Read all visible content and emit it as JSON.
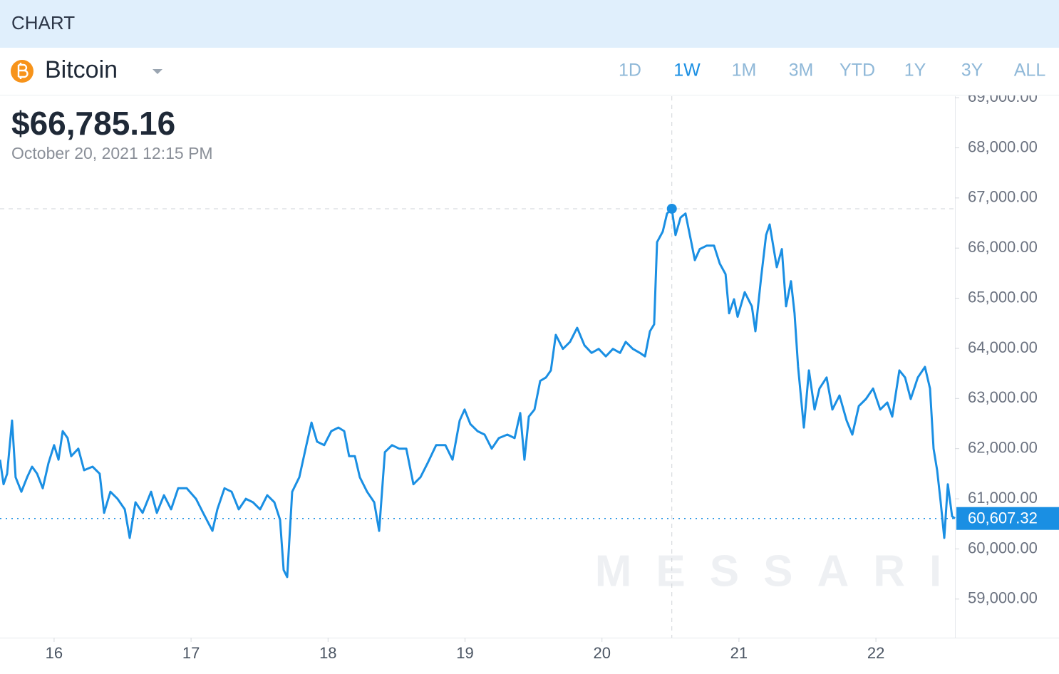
{
  "header": {
    "title": "CHART"
  },
  "asset": {
    "name": "Bitcoin",
    "periods": [
      "1D",
      "1W",
      "1M",
      "3M",
      "YTD",
      "1Y",
      "3Y",
      "ALL"
    ],
    "active": "1W"
  },
  "watermark": "MESSARI",
  "chart_data": {
    "type": "line",
    "color": "#1a8fe3",
    "x": [
      15.605,
      15.631,
      15.657,
      15.693,
      15.719,
      15.761,
      15.803,
      15.839,
      15.876,
      15.917,
      15.959,
      16.0,
      16.032,
      16.063,
      16.099,
      16.125,
      16.177,
      16.219,
      16.281,
      16.333,
      16.365,
      16.411,
      16.463,
      16.516,
      16.552,
      16.594,
      16.646,
      16.708,
      16.75,
      16.802,
      16.854,
      16.906,
      16.968,
      17.036,
      17.088,
      17.156,
      17.192,
      17.244,
      17.296,
      17.348,
      17.4,
      17.452,
      17.504,
      17.556,
      17.608,
      17.65,
      17.676,
      17.702,
      17.738,
      17.79,
      17.842,
      17.879,
      17.92,
      17.972,
      18.024,
      18.076,
      18.118,
      18.154,
      18.196,
      18.232,
      18.285,
      18.337,
      18.373,
      18.415,
      18.467,
      18.519,
      18.571,
      18.623,
      18.675,
      18.727,
      18.789,
      18.857,
      18.909,
      18.961,
      18.997,
      19.039,
      19.091,
      19.143,
      19.195,
      19.247,
      19.309,
      19.362,
      19.403,
      19.434,
      19.466,
      19.507,
      19.549,
      19.591,
      19.627,
      19.663,
      19.715,
      19.767,
      19.819,
      19.872,
      19.924,
      19.976,
      20.028,
      20.08,
      20.132,
      20.173,
      20.225,
      20.277,
      20.314,
      20.35,
      20.381,
      20.402,
      20.444,
      20.475,
      20.51,
      20.537,
      20.574,
      20.61,
      20.652,
      20.678,
      20.714,
      20.766,
      20.818,
      20.86,
      20.902,
      20.928,
      20.964,
      20.99,
      21.042,
      21.094,
      21.12,
      21.162,
      21.198,
      21.224,
      21.276,
      21.313,
      21.344,
      21.38,
      21.406,
      21.432,
      21.474,
      21.511,
      21.552,
      21.588,
      21.64,
      21.682,
      21.734,
      21.786,
      21.828,
      21.875,
      21.927,
      21.979,
      22.031,
      22.083,
      22.119,
      22.171,
      22.213,
      22.254,
      22.306,
      22.358,
      22.395,
      22.421,
      22.447,
      22.473,
      22.499,
      22.525,
      22.556,
      22.577
    ],
    "series": [
      {
        "name": "Bitcoin",
        "values": [
          61780,
          61290,
          61500,
          62560,
          61430,
          61140,
          61430,
          61640,
          61500,
          61210,
          61710,
          62070,
          61780,
          62350,
          62210,
          61850,
          62000,
          61570,
          61640,
          61500,
          60720,
          61140,
          61000,
          60790,
          60220,
          60930,
          60720,
          61140,
          60720,
          61070,
          60790,
          61210,
          61210,
          61000,
          60720,
          60360,
          60790,
          61210,
          61140,
          60790,
          61000,
          60930,
          60790,
          61070,
          60930,
          60580,
          59580,
          59440,
          61140,
          61430,
          62070,
          62520,
          62140,
          62070,
          62350,
          62420,
          62350,
          61850,
          61850,
          61430,
          61140,
          60930,
          60360,
          61930,
          62070,
          62000,
          62000,
          61290,
          61430,
          61710,
          62070,
          62070,
          61780,
          62560,
          62780,
          62490,
          62350,
          62280,
          62000,
          62210,
          62280,
          62210,
          62710,
          61780,
          62640,
          62780,
          63350,
          63420,
          63560,
          64270,
          63990,
          64130,
          64410,
          64060,
          63910,
          63990,
          63840,
          63990,
          63910,
          64130,
          63990,
          63910,
          63840,
          64340,
          64480,
          66120,
          66330,
          66690,
          66785.16,
          66260,
          66610,
          66690,
          66120,
          65760,
          65980,
          66050,
          66050,
          65690,
          65480,
          64700,
          64980,
          64630,
          65120,
          64840,
          64340,
          65410,
          66260,
          66470,
          65620,
          65980,
          64840,
          65340,
          64700,
          63630,
          62420,
          63560,
          62780,
          63200,
          63420,
          62780,
          63060,
          62560,
          62280,
          62850,
          62990,
          63200,
          62780,
          62920,
          62640,
          63560,
          63420,
          62990,
          63420,
          63630,
          63200,
          62000,
          61570,
          60930,
          60220,
          61290,
          60650,
          60607.32
        ]
      }
    ],
    "xlim": [
      15.605,
      22.577
    ],
    "xticks": [
      16,
      17,
      18,
      19,
      20,
      21,
      22
    ],
    "ylim": [
      58230,
      69030
    ],
    "yticks": [
      {
        "value": 59000,
        "label": "59,000.00"
      },
      {
        "value": 60000,
        "label": "60,000.00"
      },
      {
        "value": 61000,
        "label": "61,000.00"
      },
      {
        "value": 62000,
        "label": "62,000.00"
      },
      {
        "value": 63000,
        "label": "63,000.00"
      },
      {
        "value": 64000,
        "label": "64,000.00"
      },
      {
        "value": 65000,
        "label": "65,000.00"
      },
      {
        "value": 66000,
        "label": "66,000.00"
      },
      {
        "value": 67000,
        "label": "67,000.00"
      },
      {
        "value": 68000,
        "label": "68,000.00"
      },
      {
        "value": 69000,
        "label": "69,000.00"
      }
    ],
    "crosshair": {
      "x": 20.51,
      "value": 66785.16,
      "label": "$66,785.16",
      "date": "October 20, 2021 12:15 PM"
    },
    "last": {
      "value": 60607.32,
      "label": "60,607.32"
    }
  }
}
